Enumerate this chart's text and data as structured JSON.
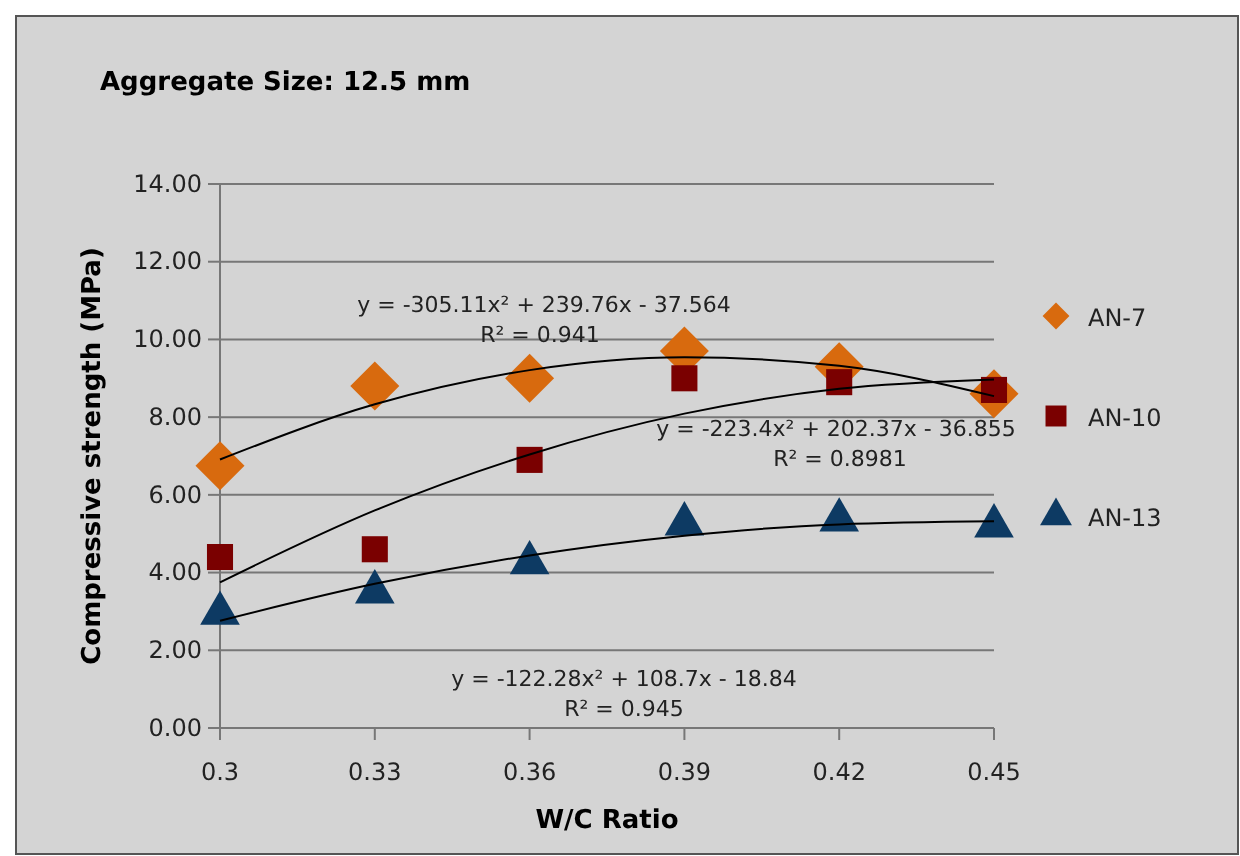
{
  "chart_data": {
    "type": "scatter",
    "title": "Aggregate Size: 12.5 mm",
    "xlabel": "W/C Ratio",
    "ylabel": "Compressive strength (MPa)",
    "x": [
      0.3,
      0.33,
      0.36,
      0.39,
      0.42,
      0.45
    ],
    "xlim": [
      0.3,
      0.45
    ],
    "xticks": [
      {
        "value": 0.3,
        "label": "0.3"
      },
      {
        "value": 0.33,
        "label": "0.33"
      },
      {
        "value": 0.36,
        "label": "0.36"
      },
      {
        "value": 0.39,
        "label": "0.39"
      },
      {
        "value": 0.42,
        "label": "0.42"
      },
      {
        "value": 0.45,
        "label": "0.45"
      }
    ],
    "ylim": [
      0,
      14
    ],
    "yticks": [
      {
        "value": 0,
        "label": "0.00"
      },
      {
        "value": 2,
        "label": "2.00"
      },
      {
        "value": 4,
        "label": "4.00"
      },
      {
        "value": 6,
        "label": "6.00"
      },
      {
        "value": 8,
        "label": "8.00"
      },
      {
        "value": 10,
        "label": "10.00"
      },
      {
        "value": 12,
        "label": "12.00"
      },
      {
        "value": 14,
        "label": "14.00"
      }
    ],
    "grid": "y",
    "legend": "right",
    "series": [
      {
        "name": "AN-7",
        "color": "#d86a0e",
        "marker": "diamond",
        "values": [
          6.75,
          8.8,
          9.0,
          9.7,
          9.3,
          8.6
        ]
      },
      {
        "name": "AN-10",
        "color": "#7a0000",
        "marker": "square",
        "values": [
          4.4,
          4.6,
          6.9,
          9.0,
          8.9,
          8.7
        ]
      },
      {
        "name": "AN-13",
        "color": "#0d3a63",
        "marker": "triangle",
        "values": [
          2.95,
          3.5,
          4.25,
          5.25,
          5.35,
          5.2
        ]
      },
      {
        "type": "line",
        "color": "#000000",
        "marker": "none",
        "line_style": "solid",
        "x": [
          0.3,
          0.33,
          0.36,
          0.39,
          0.42,
          0.45
        ],
        "values": [
          6.91,
          8.33,
          9.21,
          9.54,
          9.32,
          8.54
        ]
      },
      {
        "type": "line",
        "color": "#000000",
        "marker": "none",
        "line_style": "solid",
        "x": [
          0.3,
          0.33,
          0.36,
          0.39,
          0.42,
          0.45
        ],
        "values": [
          3.75,
          5.6,
          7.04,
          8.09,
          8.73,
          8.97
        ]
      },
      {
        "type": "line",
        "color": "#000000",
        "marker": "none",
        "line_style": "solid",
        "x": [
          0.3,
          0.33,
          0.36,
          0.39,
          0.42,
          0.45
        ],
        "values": [
          2.76,
          3.71,
          4.44,
          4.95,
          5.24,
          5.32
        ]
      }
    ],
    "annotations": [
      "y = -305.11x² + 239.76x - 37.564",
      "R² = 0.941",
      "y = -223.4x² + 202.37x - 36.855",
      "R² = 0.8981",
      "y = -122.28x² + 108.7x - 18.84",
      "R² = 0.945"
    ]
  }
}
